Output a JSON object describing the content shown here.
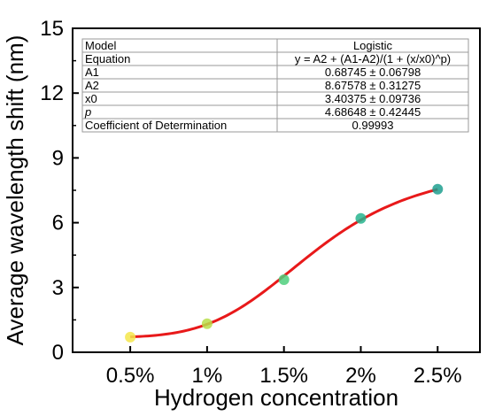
{
  "chart_data": {
    "type": "scatter",
    "xlabel": "Hydrogen concentration",
    "ylabel": "Average wavelength shift (nm)",
    "categories": [
      "0.5%",
      "1%",
      "1.5%",
      "2%",
      "2.5%"
    ],
    "yticks": [
      "0",
      "3",
      "6",
      "9",
      "12",
      "15"
    ],
    "ylim": [
      0,
      15
    ],
    "x_values": [
      1,
      2,
      3,
      4,
      5
    ],
    "xlim": [
      0.25,
      5.55
    ],
    "points": [
      {
        "x": 1,
        "y": 0.7,
        "color": "#f5e64a"
      },
      {
        "x": 2,
        "y": 1.32,
        "color": "#b8de4a"
      },
      {
        "x": 3,
        "y": 3.36,
        "color": "#4fcf7c"
      },
      {
        "x": 4,
        "y": 6.2,
        "color": "#27b48e"
      },
      {
        "x": 5,
        "y": 7.55,
        "color": "#1f9f8f"
      }
    ],
    "fit": {
      "model": "Logistic",
      "A1": 0.68745,
      "A2": 8.67578,
      "x0": 3.40375,
      "p": 4.68648,
      "color": "#e8191a"
    },
    "grid": false,
    "legend": "none"
  },
  "table": {
    "rows": [
      {
        "label": "Model",
        "value": "Logistic"
      },
      {
        "label": "Equation",
        "value": "y = A2 + (A1-A2)/(1 + (x/x0)^p)"
      },
      {
        "label": "A1",
        "value": "0.68745 ± 0.06798"
      },
      {
        "label": "A2",
        "value": "8.67578 ± 0.31275"
      },
      {
        "label": "x0",
        "value": "3.40375 ± 0.09736"
      },
      {
        "label": "p",
        "value": "4.68648 ± 0.42445"
      },
      {
        "label": "Coefficient of Determination",
        "value": "0.99993"
      }
    ]
  }
}
